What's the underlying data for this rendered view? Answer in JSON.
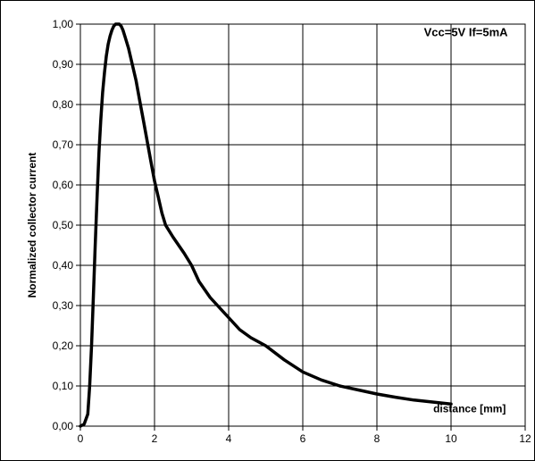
{
  "chart_data": {
    "type": "line",
    "title": "",
    "xlabel": "distance [mm]",
    "ylabel": "Normalized collector current",
    "xlim": [
      0,
      12
    ],
    "ylim": [
      0,
      1
    ],
    "x_ticks": [
      0,
      2,
      4,
      6,
      8,
      10,
      12
    ],
    "y_ticks": [
      0,
      0.1,
      0.2,
      0.3,
      0.4,
      0.5,
      0.6,
      0.7,
      0.8,
      0.9,
      1.0
    ],
    "x_tick_labels": [
      "0",
      "2",
      "4",
      "6",
      "8",
      "10",
      "12"
    ],
    "y_tick_labels": [
      "0,00",
      "0,10",
      "0,20",
      "0,30",
      "0,40",
      "0,50",
      "0,60",
      "0,70",
      "0,80",
      "0,90",
      "1,00"
    ],
    "grid": true,
    "annotations": [
      {
        "text": "Vcc=5V If=5mA"
      }
    ],
    "series": [
      {
        "color": "#000000",
        "x": [
          0.0,
          0.1,
          0.2,
          0.25,
          0.3,
          0.35,
          0.4,
          0.45,
          0.5,
          0.55,
          0.6,
          0.65,
          0.7,
          0.75,
          0.8,
          0.85,
          0.9,
          0.95,
          1.0,
          1.05,
          1.1,
          1.15,
          1.2,
          1.3,
          1.4,
          1.5,
          1.6,
          1.7,
          1.8,
          1.9,
          2.0,
          2.1,
          2.2,
          2.3,
          2.5,
          2.8,
          3.0,
          3.2,
          3.5,
          3.8,
          4.0,
          4.3,
          4.6,
          5.0,
          5.5,
          6.0,
          6.5,
          7.0,
          7.5,
          8.0,
          8.5,
          9.0,
          9.5,
          10.0
        ],
        "y": [
          0.0,
          0.005,
          0.03,
          0.1,
          0.2,
          0.32,
          0.45,
          0.57,
          0.68,
          0.76,
          0.83,
          0.88,
          0.92,
          0.95,
          0.97,
          0.985,
          0.995,
          1.0,
          1.0,
          1.0,
          0.995,
          0.985,
          0.97,
          0.94,
          0.9,
          0.86,
          0.81,
          0.76,
          0.71,
          0.66,
          0.61,
          0.57,
          0.53,
          0.5,
          0.47,
          0.43,
          0.4,
          0.36,
          0.32,
          0.29,
          0.27,
          0.24,
          0.22,
          0.2,
          0.165,
          0.135,
          0.115,
          0.1,
          0.09,
          0.08,
          0.072,
          0.065,
          0.06,
          0.055
        ]
      }
    ]
  }
}
